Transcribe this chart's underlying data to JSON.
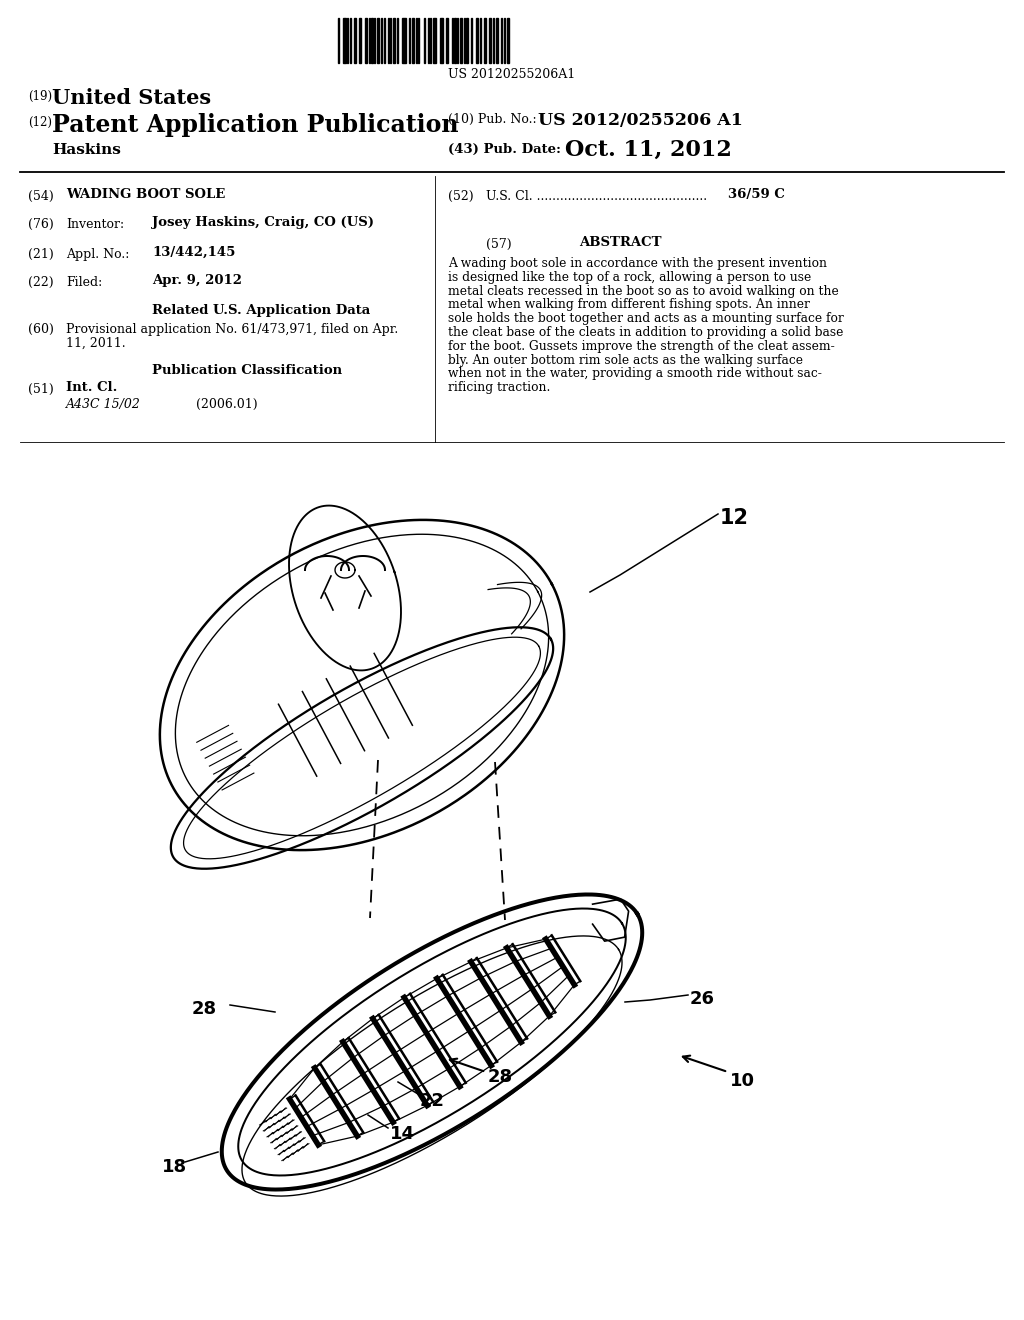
{
  "background_color": "#ffffff",
  "barcode_text": "US 20120255206A1",
  "title_19": "(19)",
  "title_19_text": "United States",
  "title_12": "(12)",
  "title_12_text": "Patent Application Publication",
  "pub_no_label": "(10) Pub. No.:",
  "pub_no_value": "US 2012/0255206 A1",
  "pub_date_label": "(43) Pub. Date:",
  "pub_date_value": "Oct. 11, 2012",
  "name": "Haskins",
  "field54_label": "(54)",
  "field54_text": "WADING BOOT SOLE",
  "field52_label": "(52)",
  "field52_value": "36/59 C",
  "field76_label": "(76)",
  "field76_key": "Inventor:",
  "field76_value": "Josey Haskins, Craig, CO (US)",
  "field21_label": "(21)",
  "field21_key": "Appl. No.:",
  "field21_value": "13/442,145",
  "field57_label": "(57)",
  "field57_title": "ABSTRACT",
  "field22_label": "(22)",
  "field22_key": "Filed:",
  "field22_value": "Apr. 9, 2012",
  "related_title": "Related U.S. Application Data",
  "field60_label": "(60)",
  "field60_line1": "Provisional application No. 61/473,971, filed on Apr.",
  "field60_line2": "11, 2011.",
  "pub_class_title": "Publication Classification",
  "field51_label": "(51)",
  "field51_key": "Int. Cl.",
  "field51_class": "A43C 15/02",
  "field51_year": "(2006.01)",
  "abstract_lines": [
    "A wading boot sole in accordance with the present invention",
    "is designed like the top of a rock, allowing a person to use",
    "metal cleats recessed in the boot so as to avoid walking on the",
    "metal when walking from different fishing spots. An inner",
    "sole holds the boot together and acts as a mounting surface for",
    "the cleat base of the cleats in addition to providing a solid base",
    "for the boot. Gussets improve the strength of the cleat assem-",
    "bly. An outer bottom rim sole acts as the walking surface",
    "when not in the water, providing a smooth ride without sac-",
    "rificing traction."
  ],
  "label_12": "12",
  "label_10": "10",
  "label_14": "14",
  "label_18": "18",
  "label_22": "22",
  "label_26": "26",
  "label_28a": "28",
  "label_28b": "28"
}
